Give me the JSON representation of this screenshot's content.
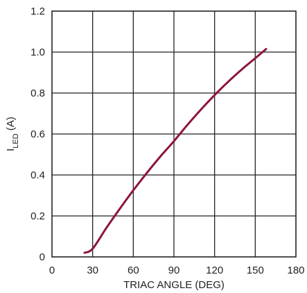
{
  "chart_data": {
    "type": "line",
    "title": "",
    "xlabel": "TRIAC ANGLE (DEG)",
    "ylabel": {
      "main": "I",
      "subscript": "LED",
      "suffix": " (A)"
    },
    "xlim": [
      0,
      180
    ],
    "ylim": [
      0,
      1.2
    ],
    "x_ticks": [
      "0",
      "30",
      "60",
      "90",
      "120",
      "150",
      "180"
    ],
    "x_tick_values": [
      0,
      30,
      60,
      90,
      120,
      150,
      180
    ],
    "y_ticks": [
      "0",
      "0.2",
      "0.4",
      "0.6",
      "0.8",
      "1.0",
      "1.2"
    ],
    "y_tick_values": [
      0,
      0.2,
      0.4,
      0.6,
      0.8,
      1.0,
      1.2
    ],
    "grid": true,
    "series": [
      {
        "color": "#8b1538",
        "x": [
          24,
          30,
          40,
          50,
          60,
          70,
          80,
          90,
          100,
          110,
          120,
          130,
          140,
          150,
          158
        ],
        "y": [
          0.02,
          0.04,
          0.14,
          0.235,
          0.325,
          0.41,
          0.49,
          0.565,
          0.645,
          0.72,
          0.79,
          0.855,
          0.915,
          0.97,
          1.015
        ]
      }
    ]
  }
}
